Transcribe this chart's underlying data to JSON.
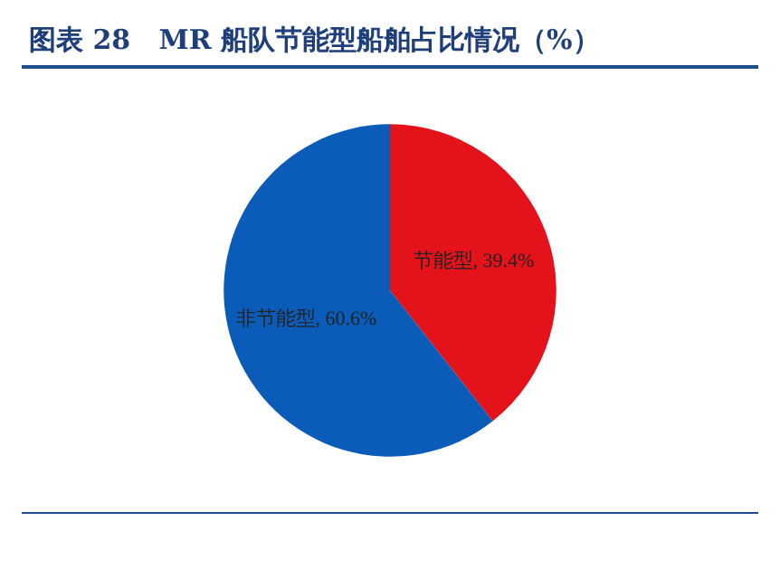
{
  "chart_data": {
    "type": "pie",
    "title": "图表 28   MR 船队节能型船舶占比情况（%）",
    "categories": [
      "节能型",
      "非节能型"
    ],
    "values": [
      39.4,
      60.6
    ],
    "colors": [
      "#e3121b",
      "#0a5cb8"
    ],
    "value_labels": [
      "39.4%",
      "60.6%"
    ],
    "legend": false
  }
}
